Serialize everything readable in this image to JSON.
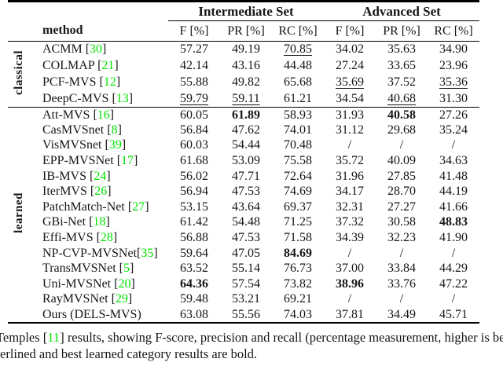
{
  "colors": {
    "citation": "#00e400",
    "text": "#161616",
    "rule": "#000000"
  },
  "table": {
    "group_headers": {
      "intermediate": "Intermediate Set",
      "advanced": "Advanced Set"
    },
    "col_method": "method",
    "metric_headers": [
      "F [%]",
      "PR [%]",
      "RC [%]",
      "F [%]",
      "PR [%]",
      "RC [%]"
    ],
    "sections": [
      {
        "id": "classical",
        "label": "classical",
        "rows": [
          {
            "method": "ACMM",
            "cite": "30",
            "cite_space": true,
            "values": [
              "57.27",
              "49.19",
              "70.85",
              "34.02",
              "35.63",
              "34.90"
            ],
            "underline": [
              2
            ],
            "bold": []
          },
          {
            "method": "COLMAP",
            "cite": "21",
            "cite_space": true,
            "values": [
              "42.14",
              "43.16",
              "44.48",
              "27.24",
              "33.65",
              "23.96"
            ],
            "underline": [],
            "bold": []
          },
          {
            "method": "PCF-MVS",
            "cite": "12",
            "cite_space": true,
            "values": [
              "55.88",
              "49.82",
              "65.68",
              "35.69",
              "37.52",
              "35.36"
            ],
            "underline": [
              3,
              5
            ],
            "bold": []
          },
          {
            "method": "DeepC-MVS",
            "cite": "13",
            "cite_space": true,
            "values": [
              "59.79",
              "59.11",
              "61.21",
              "34.54",
              "40.68",
              "31.30"
            ],
            "underline": [
              0,
              1,
              4
            ],
            "bold": []
          }
        ]
      },
      {
        "id": "learned",
        "label": "learned",
        "rows": [
          {
            "method": "Att-MVS",
            "cite": "16",
            "cite_space": true,
            "values": [
              "60.05",
              "61.89",
              "58.93",
              "31.93",
              "40.58",
              "27.26"
            ],
            "underline": [],
            "bold": [
              1,
              4
            ]
          },
          {
            "method": "CasMVSnet",
            "cite": "8",
            "cite_space": true,
            "values": [
              "56.84",
              "47.62",
              "74.01",
              "31.12",
              "29.68",
              "35.24"
            ],
            "underline": [],
            "bold": []
          },
          {
            "method": "VisMVSnet",
            "cite": "39",
            "cite_space": true,
            "values": [
              "60.03",
              "54.44",
              "70.48",
              "/",
              "/",
              "/"
            ],
            "underline": [],
            "bold": []
          },
          {
            "method": "EPP-MVSNet",
            "cite": "17",
            "cite_space": true,
            "values": [
              "61.68",
              "53.09",
              "75.58",
              "35.72",
              "40.09",
              "34.63"
            ],
            "underline": [],
            "bold": []
          },
          {
            "method": "IB-MVS",
            "cite": "24",
            "cite_space": true,
            "values": [
              "56.02",
              "47.71",
              "72.64",
              "31.96",
              "27.85",
              "41.48"
            ],
            "underline": [],
            "bold": []
          },
          {
            "method": "IterMVS",
            "cite": "26",
            "cite_space": true,
            "values": [
              "56.94",
              "47.53",
              "74.69",
              "34.17",
              "28.70",
              "44.19"
            ],
            "underline": [],
            "bold": []
          },
          {
            "method": "PatchMatch-Net",
            "cite": "27",
            "cite_space": true,
            "values": [
              "53.15",
              "43.64",
              "69.37",
              "32.31",
              "27.27",
              "41.66"
            ],
            "underline": [],
            "bold": []
          },
          {
            "method": "GBi-Net",
            "cite": "18",
            "cite_space": true,
            "values": [
              "61.42",
              "54.48",
              "71.25",
              "37.32",
              "30.58",
              "48.83"
            ],
            "underline": [],
            "bold": [
              5
            ]
          },
          {
            "method": "Effi-MVS",
            "cite": "28",
            "cite_space": true,
            "values": [
              "56.88",
              "47.53",
              "71.58",
              "34.39",
              "32.23",
              "41.90"
            ],
            "underline": [],
            "bold": []
          },
          {
            "method": "NP-CVP-MVSNet",
            "cite": "35",
            "cite_space": false,
            "values": [
              "59.64",
              "47.05",
              "84.69",
              "/",
              "/",
              "/"
            ],
            "underline": [],
            "bold": [
              2
            ]
          },
          {
            "method": "TransMVSNet",
            "cite": "5",
            "cite_space": true,
            "values": [
              "63.52",
              "55.14",
              "76.73",
              "37.00",
              "33.84",
              "44.29"
            ],
            "underline": [],
            "bold": []
          },
          {
            "method": "Uni-MVSNet",
            "cite": "20",
            "cite_space": true,
            "values": [
              "64.36",
              "57.54",
              "73.82",
              "38.96",
              "33.76",
              "47.22"
            ],
            "underline": [],
            "bold": [
              0,
              3
            ]
          },
          {
            "method": "RayMVSNet",
            "cite": "29",
            "cite_space": true,
            "values": [
              "59.48",
              "53.21",
              "69.21",
              "/",
              "/",
              "/"
            ],
            "underline": [],
            "bold": []
          },
          {
            "method": "Ours (DELS-MVS)",
            "cite": null,
            "cite_space": false,
            "values": [
              "63.08",
              "55.56",
              "74.03",
              "37.81",
              "34.49",
              "45.71"
            ],
            "underline": [],
            "bold": []
          }
        ]
      }
    ]
  },
  "caption": {
    "line1_pre": "Temples ",
    "line1_bracket_open": "[",
    "line1_cite": "11",
    "line1_bracket_close": "]",
    "line1_post": " results, showing F-score, precision and recall (percentage measurement, higher is be",
    "line2": "erlined and best learned category results are bold."
  }
}
